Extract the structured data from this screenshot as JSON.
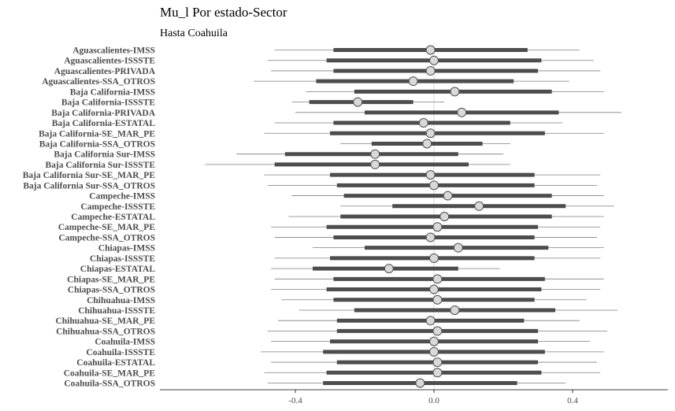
{
  "chart_data": {
    "type": "forest",
    "title": "Mu_l Por estado-Sector",
    "subtitle": "Hasta Coahuila",
    "x_ticks": [
      -0.4,
      0.0,
      0.4
    ],
    "x_tick_labels": [
      "-0.4",
      "0.0",
      "0.4"
    ],
    "xlim": [
      -0.78,
      0.67
    ],
    "rows": [
      {
        "label": "Aguascalientes-IMSS",
        "estimate": -0.01,
        "inner": [
          -0.29,
          0.27
        ],
        "outer": [
          -0.46,
          0.42
        ]
      },
      {
        "label": "Aguascalientes-ISSSTE",
        "estimate": 0.0,
        "inner": [
          -0.31,
          0.31
        ],
        "outer": [
          -0.48,
          0.46
        ]
      },
      {
        "label": "Aguascalientes-PRIVADA",
        "estimate": -0.01,
        "inner": [
          -0.29,
          0.3
        ],
        "outer": [
          -0.47,
          0.48
        ]
      },
      {
        "label": "Aguascalientes-SSA_OTROS",
        "estimate": -0.06,
        "inner": [
          -0.34,
          0.23
        ],
        "outer": [
          -0.52,
          0.39
        ]
      },
      {
        "label": "Baja California-IMSS",
        "estimate": 0.06,
        "inner": [
          -0.23,
          0.34
        ],
        "outer": [
          -0.37,
          0.49
        ]
      },
      {
        "label": "Baja California-ISSSTE",
        "estimate": -0.22,
        "inner": [
          -0.36,
          -0.06
        ],
        "outer": [
          -0.41,
          0.03
        ]
      },
      {
        "label": "Baja California-PRIVADA",
        "estimate": 0.08,
        "inner": [
          -0.2,
          0.36
        ],
        "outer": [
          -0.4,
          0.54
        ]
      },
      {
        "label": "Baja California-ESTATAL",
        "estimate": -0.03,
        "inner": [
          -0.29,
          0.22
        ],
        "outer": [
          -0.46,
          0.37
        ]
      },
      {
        "label": "Baja California-SE_MAR_PE",
        "estimate": -0.01,
        "inner": [
          -0.3,
          0.32
        ],
        "outer": [
          -0.49,
          0.49
        ]
      },
      {
        "label": "Baja California-SSA_OTROS",
        "estimate": -0.02,
        "inner": [
          -0.18,
          0.14
        ],
        "outer": [
          -0.27,
          0.22
        ]
      },
      {
        "label": "Baja California Sur-IMSS",
        "estimate": -0.17,
        "inner": [
          -0.43,
          0.07
        ],
        "outer": [
          -0.57,
          0.2
        ]
      },
      {
        "label": "Baja California Sur-ISSSTE",
        "estimate": -0.17,
        "inner": [
          -0.46,
          0.1
        ],
        "outer": [
          -0.66,
          0.22
        ]
      },
      {
        "label": "Baja California Sur-SE_MAR_PE",
        "estimate": -0.01,
        "inner": [
          -0.3,
          0.29
        ],
        "outer": [
          -0.49,
          0.48
        ]
      },
      {
        "label": "Baja California Sur-SSA_OTROS",
        "estimate": 0.0,
        "inner": [
          -0.28,
          0.29
        ],
        "outer": [
          -0.48,
          0.47
        ]
      },
      {
        "label": "Campeche-IMSS",
        "estimate": 0.04,
        "inner": [
          -0.26,
          0.34
        ],
        "outer": [
          -0.41,
          0.49
        ]
      },
      {
        "label": "Campeche-ISSSTE",
        "estimate": 0.13,
        "inner": [
          -0.12,
          0.38
        ],
        "outer": [
          -0.27,
          0.52
        ]
      },
      {
        "label": "Campeche-ESTATAL",
        "estimate": 0.03,
        "inner": [
          -0.27,
          0.34
        ],
        "outer": [
          -0.42,
          0.49
        ]
      },
      {
        "label": "Campeche-SE_MAR_PE",
        "estimate": 0.01,
        "inner": [
          -0.31,
          0.3
        ],
        "outer": [
          -0.47,
          0.48
        ]
      },
      {
        "label": "Campeche-SSA_OTROS",
        "estimate": -0.01,
        "inner": [
          -0.29,
          0.29
        ],
        "outer": [
          -0.46,
          0.47
        ]
      },
      {
        "label": "Chiapas-IMSS",
        "estimate": 0.07,
        "inner": [
          -0.2,
          0.33
        ],
        "outer": [
          -0.35,
          0.49
        ]
      },
      {
        "label": "Chiapas-ISSSTE",
        "estimate": 0.0,
        "inner": [
          -0.3,
          0.29
        ],
        "outer": [
          -0.46,
          0.48
        ]
      },
      {
        "label": "Chiapas-ESTATAL",
        "estimate": -0.13,
        "inner": [
          -0.35,
          0.07
        ],
        "outer": [
          -0.47,
          0.19
        ]
      },
      {
        "label": "Chiapas-SE_MAR_PE",
        "estimate": 0.01,
        "inner": [
          -0.29,
          0.32
        ],
        "outer": [
          -0.46,
          0.49
        ]
      },
      {
        "label": "Chiapas-SSA_OTROS",
        "estimate": 0.0,
        "inner": [
          -0.31,
          0.31
        ],
        "outer": [
          -0.47,
          0.48
        ]
      },
      {
        "label": "Chihuahua-IMSS",
        "estimate": 0.01,
        "inner": [
          -0.29,
          0.29
        ],
        "outer": [
          -0.44,
          0.44
        ]
      },
      {
        "label": "Chihuahua-ISSSTE",
        "estimate": 0.06,
        "inner": [
          -0.23,
          0.35
        ],
        "outer": [
          -0.39,
          0.53
        ]
      },
      {
        "label": "Chihuahua-SE_MAR_PE",
        "estimate": -0.01,
        "inner": [
          -0.28,
          0.26
        ],
        "outer": [
          -0.45,
          0.42
        ]
      },
      {
        "label": "Chihuahua-SSA_OTROS",
        "estimate": 0.01,
        "inner": [
          -0.28,
          0.3
        ],
        "outer": [
          -0.48,
          0.5
        ]
      },
      {
        "label": "Coahuila-IMSS",
        "estimate": 0.0,
        "inner": [
          -0.3,
          0.3
        ],
        "outer": [
          -0.47,
          0.45
        ]
      },
      {
        "label": "Coahuila-ISSSTE",
        "estimate": 0.0,
        "inner": [
          -0.32,
          0.32
        ],
        "outer": [
          -0.5,
          0.49
        ]
      },
      {
        "label": "Coahuila-ESTATAL",
        "estimate": 0.01,
        "inner": [
          -0.28,
          0.3
        ],
        "outer": [
          -0.47,
          0.47
        ]
      },
      {
        "label": "Coahuila-SE_MAR_PE",
        "estimate": 0.01,
        "inner": [
          -0.31,
          0.31
        ],
        "outer": [
          -0.49,
          0.48
        ]
      },
      {
        "label": "Coahuila-SSA_OTROS",
        "estimate": -0.04,
        "inner": [
          -0.32,
          0.24
        ],
        "outer": [
          -0.48,
          0.38
        ]
      }
    ]
  }
}
